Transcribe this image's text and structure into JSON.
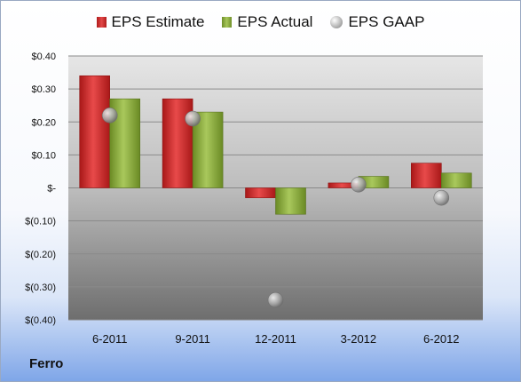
{
  "company": "Ferro",
  "colors": {
    "estimate": "#d32a2a",
    "actual": "#8fb041",
    "gaap": "#a0a0a0"
  },
  "chart_data": {
    "type": "bar",
    "categories": [
      "6-2011",
      "9-2011",
      "12-2011",
      "3-2012",
      "6-2012"
    ],
    "series": [
      {
        "name": "EPS Estimate",
        "values": [
          0.34,
          0.27,
          -0.03,
          0.015,
          0.075
        ]
      },
      {
        "name": "EPS Actual",
        "values": [
          0.27,
          0.23,
          -0.08,
          0.035,
          0.045
        ]
      },
      {
        "name": "EPS GAAP",
        "kind": "scatter",
        "values": [
          0.22,
          0.21,
          -0.34,
          0.01,
          -0.03
        ]
      }
    ],
    "ylim": [
      -0.4,
      0.4
    ],
    "yticks": [
      {
        "value": 0.4,
        "label": "$0.40"
      },
      {
        "value": 0.3,
        "label": "$0.30"
      },
      {
        "value": 0.2,
        "label": "$0.20"
      },
      {
        "value": 0.1,
        "label": "$0.10"
      },
      {
        "value": 0.0,
        "label": "$-"
      },
      {
        "value": -0.1,
        "label": "$(0.10)"
      },
      {
        "value": -0.2,
        "label": "$(0.20)"
      },
      {
        "value": -0.3,
        "label": "$(0.30)"
      },
      {
        "value": -0.4,
        "label": "$(0.40)"
      }
    ],
    "grid": true,
    "legend_position": "top-center"
  }
}
